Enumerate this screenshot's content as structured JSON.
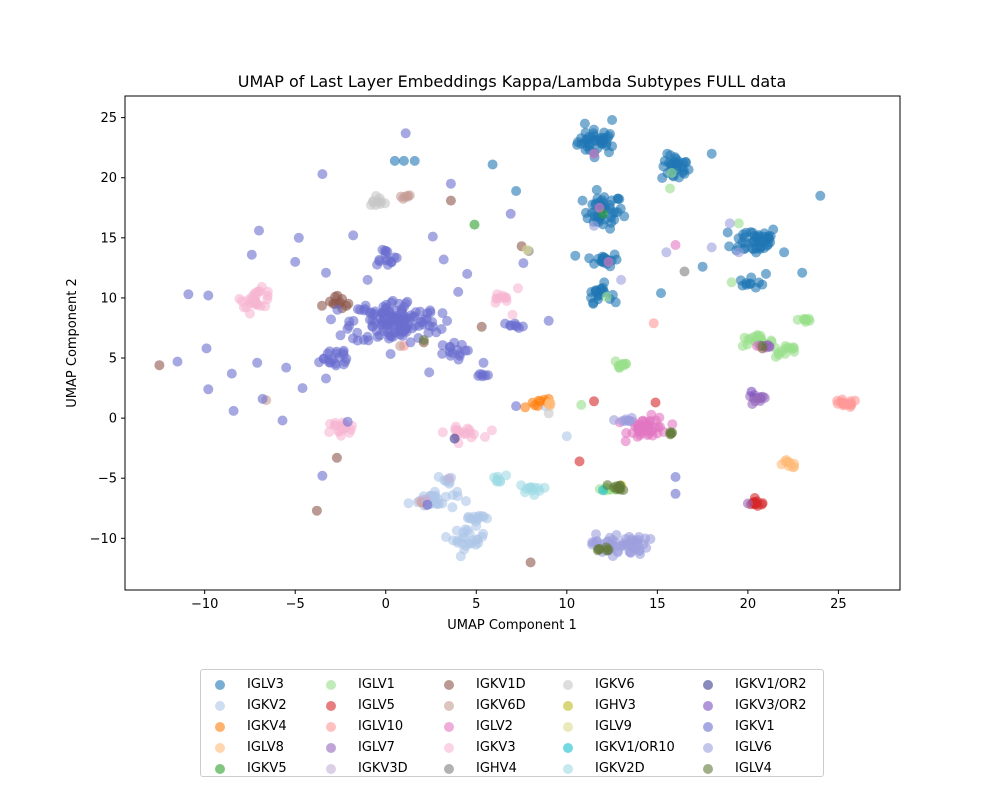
{
  "chart_data": {
    "type": "scatter",
    "title": "UMAP of Last Layer Embeddings Kappa/Lambda Subtypes FULL data",
    "xlabel": "UMAP Component 1",
    "ylabel": "UMAP Component 2",
    "xlim": [
      -14.4,
      28.4
    ],
    "ylim": [
      -14.3,
      26.8
    ],
    "xticks": [
      -10,
      -5,
      0,
      5,
      10,
      15,
      20,
      25
    ],
    "yticks": [
      -10,
      -5,
      0,
      5,
      10,
      15,
      20,
      25
    ],
    "grid": false,
    "legend_position": "bottom",
    "series": [
      {
        "name": "IGLV3",
        "color": "#1f77b4",
        "clusters": [
          [
            11.7,
            23.0,
            1.0,
            0.9,
            40
          ],
          [
            12.0,
            17.2,
            1.0,
            1.3,
            45
          ],
          [
            16.0,
            20.8,
            0.7,
            1.0,
            30
          ],
          [
            20.4,
            14.8,
            1.2,
            1.1,
            45
          ],
          [
            12.0,
            13.2,
            0.8,
            0.5,
            20
          ],
          [
            11.8,
            10.4,
            0.6,
            0.7,
            20
          ],
          [
            20.2,
            11.2,
            0.6,
            0.4,
            10
          ]
        ],
        "points": [
          [
            11.0,
            24.5
          ],
          [
            12.5,
            24.8
          ],
          [
            5.9,
            21.1
          ],
          [
            7.2,
            18.9
          ],
          [
            18.0,
            22.0
          ],
          [
            24.0,
            18.5
          ],
          [
            23.0,
            12.1
          ],
          [
            21.0,
            12.0
          ],
          [
            15.2,
            10.4
          ],
          [
            17.5,
            12.6
          ],
          [
            0.5,
            21.4
          ],
          [
            1.0,
            21.4
          ],
          [
            1.6,
            21.4
          ],
          [
            22.0,
            13.8
          ]
        ]
      },
      {
        "name": "IGKV2",
        "color": "#aec7e8",
        "clusters": [
          [
            2.6,
            -6.8,
            1.2,
            0.7,
            30
          ],
          [
            4.6,
            -10.0,
            0.8,
            0.8,
            25
          ],
          [
            5.0,
            -8.3,
            0.8,
            0.4,
            12
          ],
          [
            3.5,
            -5.1,
            0.6,
            0.3,
            8
          ]
        ],
        "points": [
          [
            8.8,
            1.0
          ],
          [
            10.0,
            -1.5
          ]
        ]
      },
      {
        "name": "IGKV4",
        "color": "#ff7f0e",
        "clusters": [
          [
            8.5,
            1.3,
            0.5,
            0.2,
            8
          ]
        ],
        "points": [
          [
            7.7,
            0.9
          ],
          [
            9.0,
            1.6
          ],
          [
            2.0,
            -7.0
          ]
        ]
      },
      {
        "name": "IGLV8",
        "color": "#ffbb78",
        "clusters": [
          [
            22.3,
            -3.8,
            0.5,
            0.3,
            10
          ],
          [
            9.0,
            1.2,
            0.4,
            0.2,
            5
          ]
        ],
        "points": []
      },
      {
        "name": "IGKV5",
        "color": "#2ca02c",
        "clusters": [],
        "points": [
          [
            4.9,
            16.1
          ],
          [
            12.0,
            17.0
          ]
        ]
      },
      {
        "name": "IGLV1",
        "color": "#98df8a",
        "clusters": [
          [
            20.4,
            6.4,
            0.9,
            0.4,
            20
          ],
          [
            22.2,
            5.6,
            0.6,
            0.5,
            12
          ],
          [
            13.0,
            4.5,
            0.4,
            0.5,
            10
          ],
          [
            23.2,
            8.2,
            0.4,
            0.3,
            8
          ],
          [
            12.4,
            -5.9,
            0.5,
            0.2,
            8
          ]
        ],
        "points": [
          [
            15.8,
            20.4
          ],
          [
            15.7,
            19.1
          ],
          [
            10.8,
            1.1
          ],
          [
            19.1,
            11.3
          ],
          [
            12.2,
            10.1
          ],
          [
            19.5,
            16.2
          ]
        ]
      },
      {
        "name": "IGLV5",
        "color": "#d62728",
        "clusters": [
          [
            20.5,
            -7.1,
            0.5,
            0.25,
            12
          ]
        ],
        "points": [
          [
            10.7,
            -3.6
          ],
          [
            11.5,
            1.4
          ],
          [
            14.9,
            1.3
          ],
          [
            14.0,
            -0.8
          ]
        ]
      },
      {
        "name": "IGLV10",
        "color": "#ff9896",
        "clusters": [
          [
            25.3,
            1.2,
            0.7,
            0.3,
            15
          ]
        ],
        "points": [
          [
            14.8,
            7.9
          ],
          [
            1.0,
            6.0
          ]
        ]
      },
      {
        "name": "IGLV7",
        "color": "#9467bd",
        "clusters": [
          [
            20.5,
            1.5,
            0.5,
            0.4,
            12
          ],
          [
            21.0,
            6.0,
            0.4,
            0.3,
            6
          ]
        ],
        "points": [
          [
            20.0,
            -7.1
          ]
        ]
      },
      {
        "name": "IGKV3D",
        "color": "#c5b0d5",
        "clusters": [
          [
            2.0,
            -7.0,
            0.3,
            0.3,
            4
          ]
        ],
        "points": [
          [
            3.5,
            -5.0
          ]
        ]
      },
      {
        "name": "IGKV1D",
        "color": "#8c564b",
        "clusters": [
          [
            -2.5,
            9.6,
            0.7,
            0.5,
            12
          ]
        ],
        "points": [
          [
            -12.5,
            4.4
          ],
          [
            -2.7,
            -3.3
          ],
          [
            -3.8,
            -7.7
          ],
          [
            8.0,
            -12.0
          ],
          [
            3.6,
            18.1
          ],
          [
            5.3,
            7.6
          ],
          [
            -7.2,
            9.6
          ],
          [
            7.5,
            14.3
          ],
          [
            2.1,
            6.3
          ],
          [
            20.8,
            5.8
          ]
        ]
      },
      {
        "name": "IGKV6D",
        "color": "#c49c94",
        "clusters": [
          [
            1.0,
            18.3,
            0.4,
            0.3,
            6
          ]
        ],
        "points": [
          [
            0.8,
            6.0
          ],
          [
            -6.6,
            1.5
          ]
        ]
      },
      {
        "name": "IGLV2",
        "color": "#e377c2",
        "clusters": [
          [
            14.5,
            -0.8,
            1.0,
            0.8,
            45
          ]
        ],
        "points": [
          [
            16.0,
            14.4
          ],
          [
            12.3,
            13.0
          ],
          [
            11.5,
            22.0
          ],
          [
            20.5,
            6.0
          ],
          [
            11.8,
            17.5
          ]
        ]
      },
      {
        "name": "IGKV3",
        "color": "#f7b6d2",
        "clusters": [
          [
            -7.1,
            10.0,
            0.8,
            0.7,
            25
          ],
          [
            -2.5,
            -0.8,
            0.8,
            0.5,
            18
          ],
          [
            4.3,
            -1.2,
            0.9,
            0.4,
            18
          ],
          [
            6.3,
            9.9,
            0.5,
            0.5,
            10
          ]
        ],
        "points": [
          [
            7.3,
            10.8
          ],
          [
            7.0,
            8.6
          ],
          [
            -7.5,
            8.7
          ]
        ]
      },
      {
        "name": "IGHV4",
        "color": "#7f7f7f",
        "clusters": [],
        "points": [
          [
            7.9,
            13.9
          ],
          [
            16.5,
            12.2
          ]
        ]
      },
      {
        "name": "IGKV6",
        "color": "#c7c7c7",
        "clusters": [
          [
            -0.5,
            18.1,
            0.5,
            0.4,
            10
          ]
        ],
        "points": [
          [
            9.0,
            0.4
          ]
        ]
      },
      {
        "name": "IGHV3",
        "color": "#bcbd22",
        "clusters": [],
        "points": [
          [
            13.0,
            -5.6
          ]
        ]
      },
      {
        "name": "IGLV9",
        "color": "#dbdb8d",
        "clusters": [],
        "points": [
          [
            7.8,
            14.0
          ]
        ]
      },
      {
        "name": "IGKV1/OR10",
        "color": "#17becf",
        "clusters": [],
        "points": [
          [
            12.0,
            -6.0
          ]
        ]
      },
      {
        "name": "IGKV2D",
        "color": "#9edae5",
        "clusters": [
          [
            8.0,
            -5.9,
            0.6,
            0.4,
            12
          ],
          [
            6.2,
            -5.1,
            0.4,
            0.3,
            8
          ]
        ],
        "points": []
      },
      {
        "name": "IGKV1/OR2",
        "color": "#3b3b8f",
        "clusters": [],
        "points": [
          [
            3.8,
            -1.7
          ],
          [
            12.3,
            -11.0
          ]
        ]
      },
      {
        "name": "IGKV3/OR2",
        "color": "#7b4fbf",
        "clusters": [],
        "points": [
          [
            20.2,
            2.2
          ]
        ]
      },
      {
        "name": "IGKV1",
        "color": "#6b6ecf",
        "clusters": [
          [
            0.5,
            8.0,
            2.2,
            1.7,
            140
          ],
          [
            0.0,
            13.5,
            0.6,
            0.7,
            15
          ],
          [
            -3.0,
            5.0,
            1.2,
            1.0,
            20
          ],
          [
            3.5,
            5.5,
            0.8,
            0.6,
            15
          ],
          [
            5.3,
            3.5,
            0.4,
            0.3,
            6
          ],
          [
            7.0,
            7.7,
            0.6,
            0.2,
            8
          ]
        ],
        "points": [
          [
            -3.5,
            20.3
          ],
          [
            1.1,
            23.7
          ],
          [
            3.6,
            19.5
          ],
          [
            3.2,
            13.2
          ],
          [
            -4.8,
            15.0
          ],
          [
            -1.8,
            15.2
          ],
          [
            -7.0,
            15.6
          ],
          [
            -7.4,
            13.6
          ],
          [
            2.6,
            15.1
          ],
          [
            6.9,
            17.0
          ],
          [
            7.6,
            12.9
          ],
          [
            -10.9,
            10.3
          ],
          [
            -9.8,
            10.2
          ],
          [
            -11.5,
            4.7
          ],
          [
            -9.9,
            5.8
          ],
          [
            -8.5,
            3.7
          ],
          [
            -7.1,
            4.6
          ],
          [
            -9.8,
            2.4
          ],
          [
            -6.8,
            1.6
          ],
          [
            -8.4,
            0.6
          ],
          [
            -5.7,
            -0.2
          ],
          [
            -4.6,
            2.5
          ],
          [
            -5.5,
            4.2
          ],
          [
            -3.3,
            3.3
          ],
          [
            -3.5,
            -4.8
          ],
          [
            -2.1,
            -0.3
          ],
          [
            -3.3,
            12.1
          ],
          [
            2.4,
            3.8
          ],
          [
            5.4,
            4.6
          ],
          [
            4.5,
            12.0
          ],
          [
            9.0,
            8.1
          ],
          [
            7.2,
            1.0
          ],
          [
            16.0,
            -4.9
          ],
          [
            16.0,
            -6.3
          ],
          [
            -5.0,
            13.0
          ],
          [
            -1.0,
            11.5
          ],
          [
            4.0,
            10.5
          ],
          [
            2.3,
            -7.2
          ]
        ]
      },
      {
        "name": "IGLV6",
        "color": "#9c9ede",
        "clusters": [
          [
            12.9,
            -10.5,
            1.4,
            0.8,
            50
          ],
          [
            13.2,
            -0.2,
            0.5,
            0.2,
            8
          ]
        ],
        "points": [
          [
            19.5,
            13.8
          ],
          [
            11.5,
            16.0
          ],
          [
            15.5,
            13.8
          ],
          [
            19.0,
            16.2
          ],
          [
            18.0,
            14.2
          ],
          [
            13.0,
            11.5
          ]
        ]
      },
      {
        "name": "IGLV4",
        "color": "#637939",
        "clusters": [
          [
            12.8,
            -5.8,
            0.5,
            0.3,
            12
          ],
          [
            12.0,
            -11.0,
            0.4,
            0.2,
            6
          ],
          [
            15.8,
            -1.2,
            0.3,
            0.2,
            4
          ]
        ],
        "points": [
          [
            2.1,
            6.5
          ],
          [
            20.8,
            6.0
          ]
        ]
      }
    ]
  }
}
